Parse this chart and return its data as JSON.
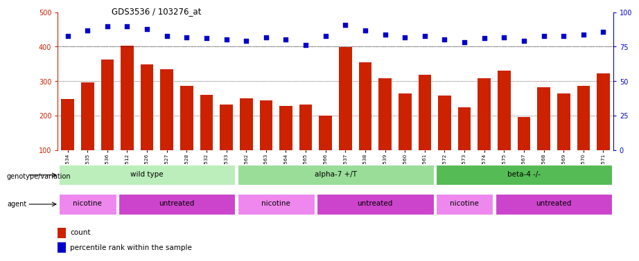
{
  "title": "GDS3536 / 103276_at",
  "samples": [
    "GSM153534",
    "GSM153535",
    "GSM153536",
    "GSM153512",
    "GSM153526",
    "GSM153527",
    "GSM153528",
    "GSM153532",
    "GSM153533",
    "GSM153562",
    "GSM153563",
    "GSM153564",
    "GSM153565",
    "GSM153566",
    "GSM153537",
    "GSM153538",
    "GSM153539",
    "GSM153560",
    "GSM153561",
    "GSM153572",
    "GSM153573",
    "GSM153574",
    "GSM153575",
    "GSM153567",
    "GSM153568",
    "GSM153569",
    "GSM153570",
    "GSM153571"
  ],
  "counts": [
    248,
    297,
    363,
    403,
    348,
    335,
    287,
    261,
    232,
    250,
    244,
    229,
    232,
    200,
    398,
    354,
    308,
    264,
    318,
    258,
    225,
    308,
    330,
    197,
    282,
    264,
    287,
    323
  ],
  "percentiles": [
    83,
    87,
    90,
    90,
    88,
    83,
    82,
    81,
    80,
    79,
    82,
    80,
    76,
    83,
    91,
    87,
    84,
    82,
    83,
    80,
    78,
    81,
    82,
    79,
    83,
    83,
    84,
    86
  ],
  "bar_color": "#cc2200",
  "dot_color": "#0000cc",
  "left_ylim": [
    100,
    500
  ],
  "left_yticks": [
    100,
    200,
    300,
    400,
    500
  ],
  "right_ylim": [
    0,
    100
  ],
  "right_yticks": [
    0,
    25,
    50,
    75,
    100
  ],
  "hgrid_lines": [
    200,
    300,
    400
  ],
  "genotype_groups": [
    {
      "label": "wild type",
      "start": 0,
      "end": 8,
      "color": "#bbeebb"
    },
    {
      "label": "alpha-7 +/T",
      "start": 9,
      "end": 18,
      "color": "#99dd99"
    },
    {
      "label": "beta-4 -/-",
      "start": 19,
      "end": 27,
      "color": "#55bb55"
    }
  ],
  "agent_groups": [
    {
      "label": "nicotine",
      "start": 0,
      "end": 2,
      "color": "#ee88ee"
    },
    {
      "label": "untreated",
      "start": 3,
      "end": 8,
      "color": "#cc44cc"
    },
    {
      "label": "nicotine",
      "start": 9,
      "end": 12,
      "color": "#ee88ee"
    },
    {
      "label": "untreated",
      "start": 13,
      "end": 18,
      "color": "#cc44cc"
    },
    {
      "label": "nicotine",
      "start": 19,
      "end": 21,
      "color": "#ee88ee"
    },
    {
      "label": "untreated",
      "start": 22,
      "end": 27,
      "color": "#cc44cc"
    }
  ],
  "legend_count_color": "#cc2200",
  "legend_dot_color": "#0000cc",
  "background_color": "#ffffff"
}
